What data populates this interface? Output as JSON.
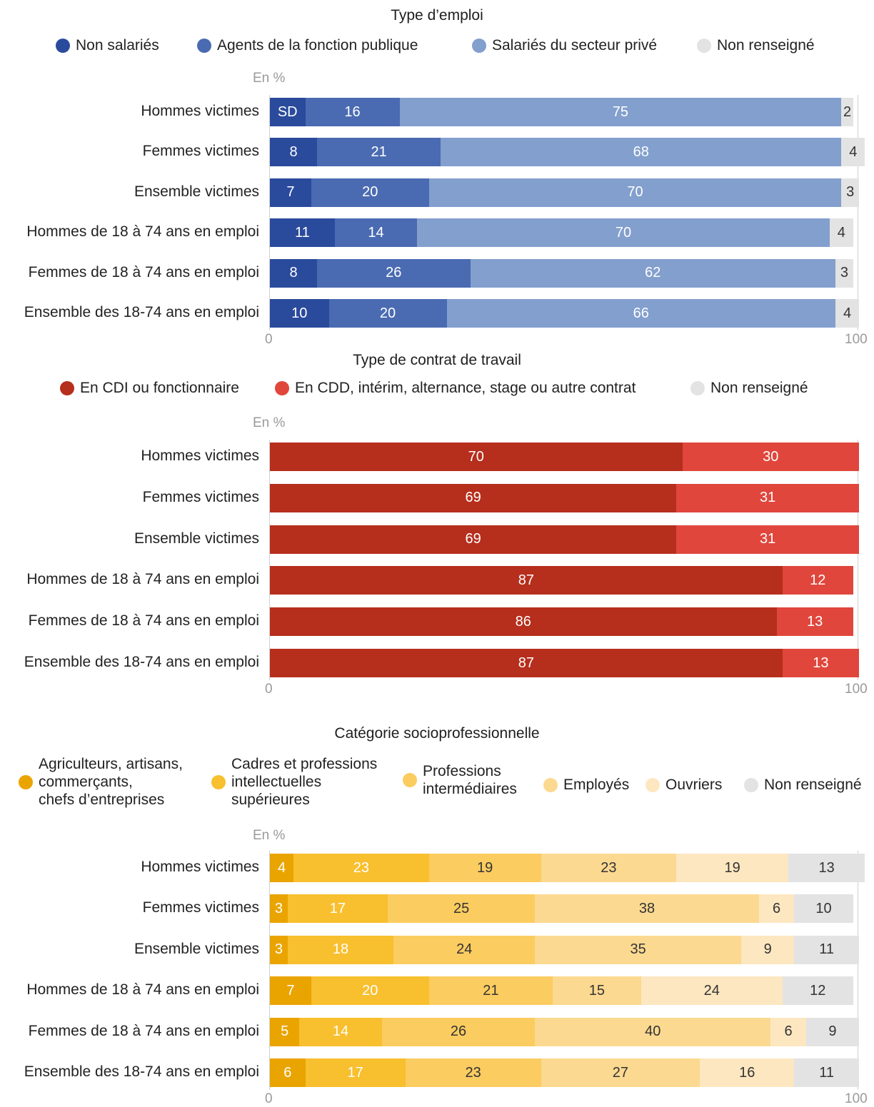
{
  "chart_data": [
    {
      "type": "bar",
      "orientation": "horizontal",
      "stacked": true,
      "title": "Type d’emploi",
      "unit_label": "En %",
      "xlim": [
        0,
        100
      ],
      "x_ticks": [
        "0",
        "100"
      ],
      "categories": [
        "Hommes victimes",
        "Femmes victimes",
        "Ensemble victimes",
        "Hommes de 18 à 74 ans en emploi",
        "Femmes de 18 à 74 ans en emploi",
        "Ensemble des 18-74 ans en emploi"
      ],
      "series": [
        {
          "name": "Non salariés",
          "color": "#2a4a9c",
          "text_color": "#ffffff",
          "values": [
            6,
            8,
            7,
            11,
            8,
            10
          ],
          "labels": [
            "SD",
            "8",
            "7",
            "11",
            "8",
            "10"
          ]
        },
        {
          "name": "Agents de la fonction publique",
          "color": "#4a6bb2",
          "text_color": "#ffffff",
          "values": [
            16,
            21,
            20,
            14,
            26,
            20
          ],
          "labels": [
            "16",
            "21",
            "20",
            "14",
            "26",
            "20"
          ]
        },
        {
          "name": "Salariés du secteur privé",
          "color": "#829fcd",
          "text_color": "#ffffff",
          "values": [
            75,
            68,
            70,
            70,
            62,
            66
          ],
          "labels": [
            "75",
            "68",
            "70",
            "70",
            "62",
            "66"
          ]
        },
        {
          "name": "Non renseigné",
          "color": "#e3e3e3",
          "text_color": "#333333",
          "values": [
            2,
            4,
            3,
            4,
            3,
            4
          ],
          "labels": [
            "2",
            "4",
            "3",
            "4",
            "3",
            "4"
          ]
        }
      ]
    },
    {
      "type": "bar",
      "orientation": "horizontal",
      "stacked": true,
      "title": "Type de contrat de travail",
      "unit_label": "En %",
      "xlim": [
        0,
        100
      ],
      "x_ticks": [
        "0",
        "100"
      ],
      "categories": [
        "Hommes victimes",
        "Femmes victimes",
        "Ensemble victimes",
        "Hommes de 18 à 74 ans en emploi",
        "Femmes de 18 à 74 ans en emploi",
        "Ensemble des 18-74 ans en emploi"
      ],
      "series": [
        {
          "name": "En CDI ou fonctionnaire",
          "color": "#b62e1c",
          "text_color": "#ffffff",
          "values": [
            70,
            69,
            69,
            87,
            86,
            87
          ],
          "labels": [
            "70",
            "69",
            "69",
            "87",
            "86",
            "87"
          ]
        },
        {
          "name": "En CDD, intérim, alternance, stage ou autre contrat",
          "color": "#e0463c",
          "text_color": "#ffffff",
          "values": [
            30,
            31,
            31,
            12,
            13,
            13
          ],
          "labels": [
            "30",
            "31",
            "31",
            "12",
            "13",
            "13"
          ]
        },
        {
          "name": "Non renseigné",
          "color": "#e3e3e3",
          "text_color": "#333333",
          "values": [
            0,
            0,
            0,
            0,
            0,
            0
          ],
          "labels": [
            "",
            "",
            "",
            "",
            "",
            ""
          ]
        }
      ]
    },
    {
      "type": "bar",
      "orientation": "horizontal",
      "stacked": true,
      "title": "Catégorie socioprofessionnelle",
      "unit_label": "En %",
      "xlim": [
        0,
        100
      ],
      "x_ticks": [
        "0",
        "100"
      ],
      "categories": [
        "Hommes victimes",
        "Femmes victimes",
        "Ensemble victimes",
        "Hommes de 18 à 74 ans en emploi",
        "Femmes de 18 à 74 ans en emploi",
        "Ensemble des 18-74 ans en emploi"
      ],
      "series": [
        {
          "name": "Agriculteurs, artisans,\ncommerçants,\nchefs d’entreprises",
          "color": "#eaa400",
          "text_color": "#ffffff",
          "values": [
            4,
            3,
            3,
            7,
            5,
            6
          ],
          "labels": [
            "4",
            "3",
            "3",
            "7",
            "5",
            "6"
          ]
        },
        {
          "name": "Cadres et professions\nintellectuelles\nsupérieures",
          "color": "#f8bf2e",
          "text_color": "#ffffff",
          "values": [
            23,
            17,
            18,
            20,
            14,
            17
          ],
          "labels": [
            "23",
            "17",
            "18",
            "20",
            "14",
            "17"
          ]
        },
        {
          "name": "Professions\nintermédiaires",
          "color": "#fbcc60",
          "text_color": "#333333",
          "values": [
            19,
            25,
            24,
            21,
            26,
            23
          ],
          "labels": [
            "19",
            "25",
            "24",
            "21",
            "26",
            "23"
          ]
        },
        {
          "name": "Employés",
          "color": "#fcd991",
          "text_color": "#333333",
          "values": [
            23,
            38,
            35,
            15,
            40,
            27
          ],
          "labels": [
            "23",
            "38",
            "35",
            "15",
            "40",
            "27"
          ]
        },
        {
          "name": "Ouvriers",
          "color": "#fde7c0",
          "text_color": "#333333",
          "values": [
            19,
            6,
            9,
            24,
            6,
            16
          ],
          "labels": [
            "19",
            "6",
            "9",
            "24",
            "6",
            "16"
          ]
        },
        {
          "name": "Non renseigné",
          "color": "#e3e3e3",
          "text_color": "#333333",
          "values": [
            13,
            10,
            11,
            12,
            9,
            11
          ],
          "labels": [
            "13",
            "10",
            "11",
            "12",
            "9",
            "11"
          ]
        }
      ]
    }
  ]
}
